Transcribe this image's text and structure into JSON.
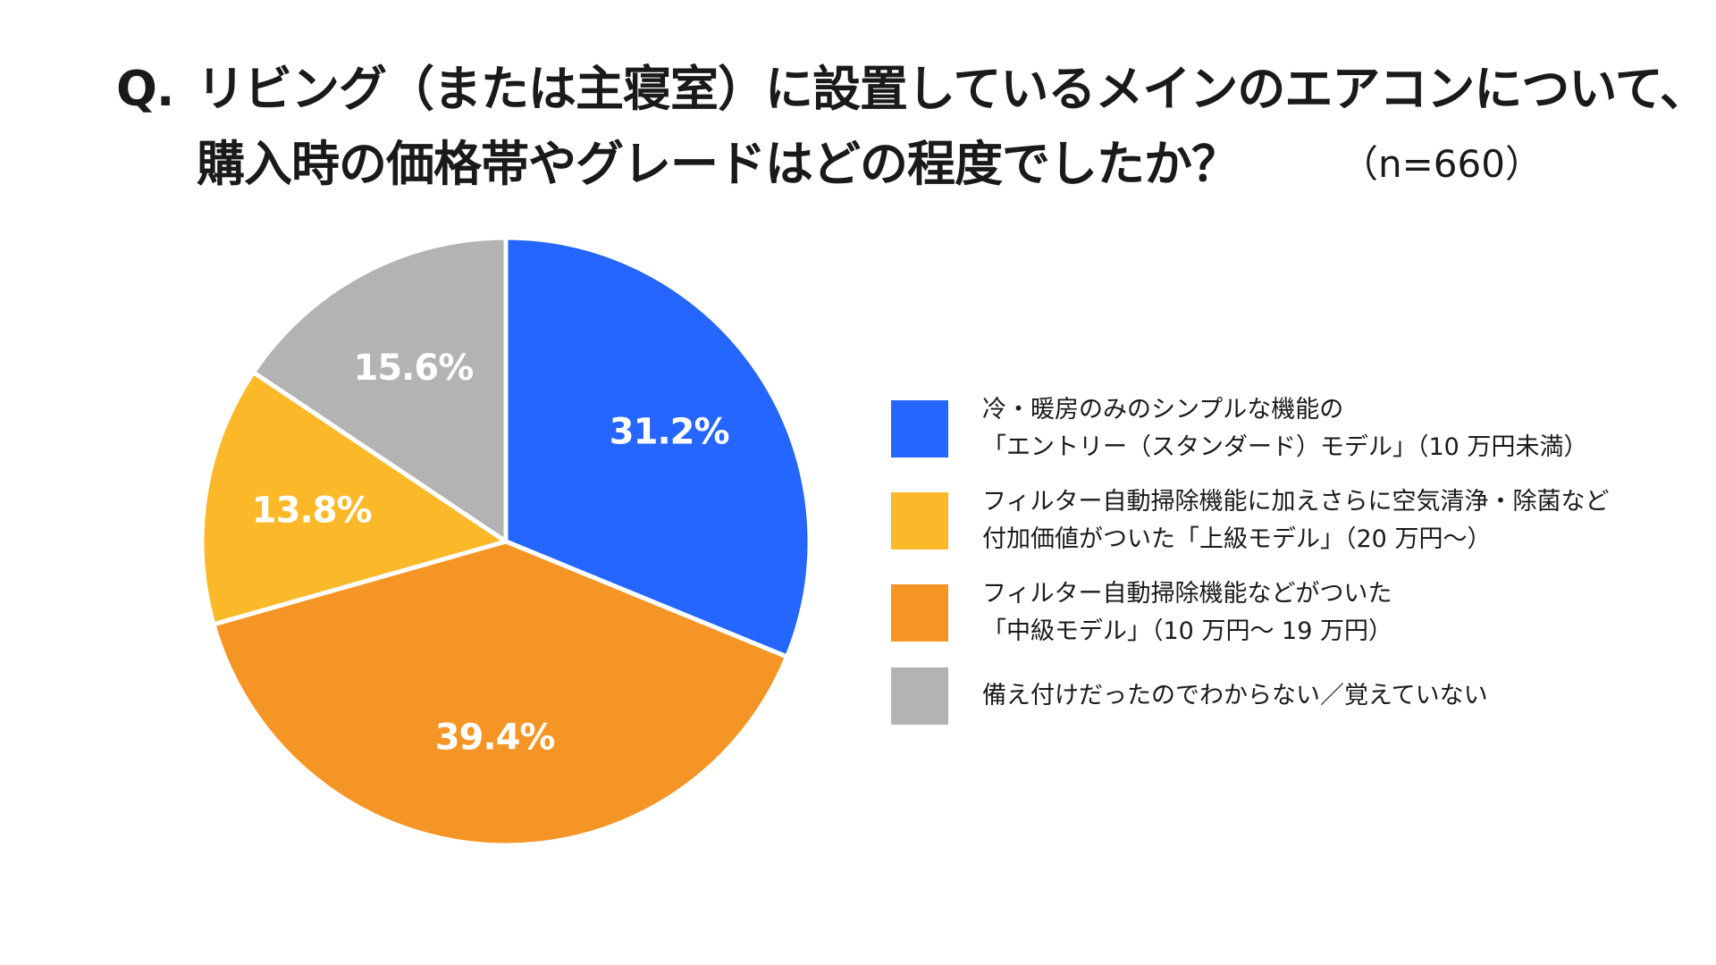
{
  "title": {
    "prefix": "Q.",
    "line1": "リビング（または主寝室）に設置しているメインのエアコンについて、",
    "line2": "購入時の価格帯やグレードはどの程度でしたか？",
    "sample_size": "（n=660）"
  },
  "colors": {
    "blue": "#2466FF",
    "yellow": "#FBB929",
    "orange": "#F59525",
    "gray": "#B3B3B3"
  },
  "chart_data": {
    "type": "pie",
    "title": "リビング（または主寝室）に設置しているメインのエアコンについて、購入時の価格帯やグレードはどの程度でしたか？",
    "n": 660,
    "start_angle": "12 o'clock",
    "direction": "clockwise",
    "slices": [
      {
        "value": 31.2,
        "label": "31.2%",
        "color": "#2466FF",
        "legend": [
          "冷・暖房のみのシンプルな機能の",
          "「エントリー（スタンダード）モデル」（10 万円未満）"
        ]
      },
      {
        "value": 39.4,
        "label": "39.4%",
        "color": "#F59525",
        "legend": [
          "フィルター自動掃除機能などがついた",
          "「中級モデル」（10 万円〜 19 万円）"
        ]
      },
      {
        "value": 13.8,
        "label": "13.8%",
        "color": "#FBB929",
        "legend": [
          "フィルター自動掃除機能に加えさらに空気清浄・除菌など",
          "付加価値がついた「上級モデル」（20 万円〜）"
        ]
      },
      {
        "value": 15.6,
        "label": "15.6%",
        "color": "#B3B3B3",
        "legend": [
          "備え付けだったのでわからない／覚えていない"
        ]
      }
    ],
    "legend_order": [
      0,
      2,
      1,
      3
    ]
  }
}
